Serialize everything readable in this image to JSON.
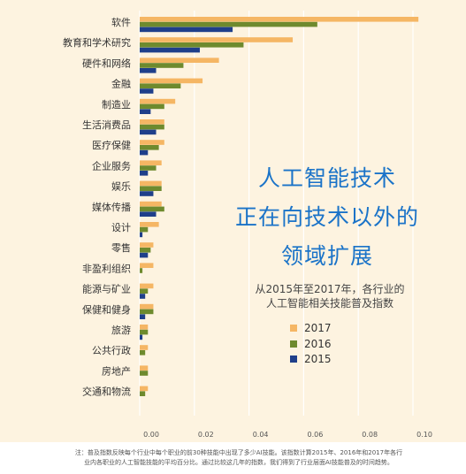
{
  "headline": {
    "line1": "人工智能技术",
    "line2": "正在向技术以外的",
    "line3": "领域扩展"
  },
  "subtitle": {
    "line1": "从2015年至2017年，各行业的",
    "line2": "人工智能相关技能普及指数"
  },
  "footnote": {
    "line1": "注：普及指数反映每个行业中每个职业的前30种技能中出现了多少AI技能。该指数计算2015年、2016年和2017年各行",
    "line2": "业内各职业的人工智能技能的平均百分比。通过比较这几年的指数，我们得到了行业层面AI技能普及的时间趋势。"
  },
  "colors": {
    "2017": "#f5b664",
    "2016": "#6e8a2e",
    "2015": "#1f3f8a",
    "background": "#fdf3e0",
    "headline": "#1a73c8"
  },
  "chart_data": {
    "type": "bar",
    "orientation": "horizontal",
    "categories": [
      "软件",
      "教育和学术研究",
      "硬件和网络",
      "金融",
      "制造业",
      "生活消费品",
      "医疗保健",
      "企业服务",
      "娱乐",
      "媒体传播",
      "设计",
      "零售",
      "非盈利组织",
      "能源与矿业",
      "保健和健身",
      "旅游",
      "公共行政",
      "房地产",
      "交通和物流"
    ],
    "series": [
      {
        "name": "2017",
        "values": [
          0.102,
          0.056,
          0.029,
          0.023,
          0.013,
          0.009,
          0.009,
          0.008,
          0.008,
          0.008,
          0.007,
          0.005,
          0.005,
          0.005,
          0.005,
          0.003,
          0.003,
          0.003,
          0.003
        ]
      },
      {
        "name": "2016",
        "values": [
          0.065,
          0.038,
          0.016,
          0.015,
          0.009,
          0.009,
          0.007,
          0.006,
          0.008,
          0.009,
          0.003,
          0.004,
          0.001,
          0.003,
          0.005,
          0.003,
          0.002,
          0.003,
          0.002
        ]
      },
      {
        "name": "2015",
        "values": [
          0.034,
          0.022,
          0.006,
          0.005,
          0.004,
          0.006,
          0.003,
          0.003,
          0.005,
          0.006,
          0.001,
          0.003,
          0.0,
          0.002,
          0.002,
          0.001,
          0.0,
          0.0,
          0.0
        ]
      }
    ],
    "xticks": [
      "0.00",
      "0.02",
      "0.04",
      "0.06",
      "0.08",
      "0.10"
    ],
    "xlim": [
      0,
      0.1
    ],
    "grid": true,
    "legend": {
      "position": "right-middle",
      "order": [
        "2017",
        "2016",
        "2015"
      ]
    }
  }
}
